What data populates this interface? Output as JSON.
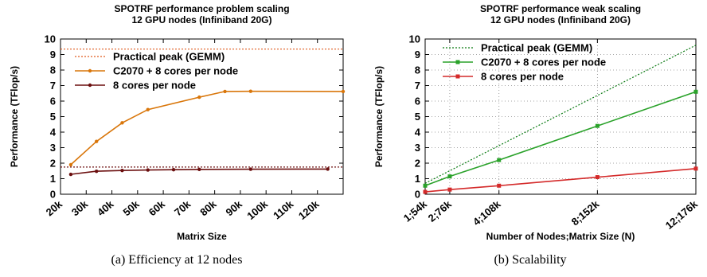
{
  "chart_data": [
    {
      "type": "line",
      "title": "SPOTRF performance problem scaling",
      "subtitle": "12 GPU nodes (Infiniband 20G)",
      "xlabel": "Matrix Size",
      "ylabel": "Performance (TFlop/s)",
      "xlim": [
        20000,
        130000
      ],
      "ylim": [
        0,
        10
      ],
      "x_tick_values": [
        20000,
        30000,
        40000,
        50000,
        60000,
        70000,
        80000,
        90000,
        100000,
        110000,
        120000
      ],
      "x_tick_labels": [
        "20k",
        "30k",
        "40k",
        "50k",
        "60k",
        "70k",
        "80k",
        "90k",
        "100k",
        "110k",
        "120k"
      ],
      "y_ticks": [
        0,
        1,
        2,
        3,
        4,
        5,
        6,
        7,
        8,
        9,
        10
      ],
      "grid": false,
      "legend_position": "top-left",
      "series": [
        {
          "name": "Practical peak (GEMM)",
          "style": "dotted",
          "color": "#e05a1e",
          "x": [
            20000,
            130000
          ],
          "values": [
            9.35,
            9.35
          ]
        },
        {
          "name": "C2070 + 8 cores per node",
          "style": "line-points",
          "color": "#d9760a",
          "x": [
            24000,
            34000,
            44000,
            54000,
            74000,
            84000,
            94000,
            130000
          ],
          "values": [
            1.9,
            3.4,
            4.6,
            5.45,
            6.25,
            6.62,
            6.63,
            6.62
          ]
        },
        {
          "name": "8 cores per node",
          "style": "line-points",
          "color": "#6b0f0f",
          "x": [
            24000,
            34000,
            44000,
            54000,
            64000,
            74000,
            94000,
            124000
          ],
          "values": [
            1.28,
            1.48,
            1.53,
            1.56,
            1.58,
            1.6,
            1.61,
            1.62
          ]
        },
        {
          "name": "",
          "style": "dotted",
          "color": "#6b0f0f",
          "x": [
            20000,
            130000
          ],
          "values": [
            1.75,
            1.75
          ]
        }
      ]
    },
    {
      "type": "line",
      "title": "SPOTRF performance weak scaling",
      "subtitle": "12 GPU nodes (Infiniband 20G)",
      "xlabel": "Number of Nodes;Matrix Size (N)",
      "ylabel": "Performance (TFlop/s)",
      "categories": [
        "1;54k",
        "2;76k",
        "4;108k",
        "8;152k",
        "12;176k"
      ],
      "x": [
        1,
        2,
        4,
        8,
        12
      ],
      "xlim": [
        1,
        12
      ],
      "ylim": [
        0,
        10
      ],
      "y_ticks": [
        0,
        1,
        2,
        3,
        4,
        5,
        6,
        7,
        8,
        9,
        10
      ],
      "grid": true,
      "legend_position": "top-left",
      "series": [
        {
          "name": "Practical peak (GEMM)",
          "style": "dotted",
          "color": "#0a7a12",
          "x": [
            1,
            12
          ],
          "values": [
            0.7,
            9.6
          ]
        },
        {
          "name": "C2070 + 8 cores per node",
          "style": "line-points",
          "color": "#2aa22a",
          "x": [
            1,
            2,
            4,
            8,
            12
          ],
          "values": [
            0.55,
            1.15,
            2.2,
            4.4,
            6.6
          ]
        },
        {
          "name": "8 cores per node",
          "style": "line-points",
          "color": "#d42a2a",
          "x": [
            1,
            2,
            4,
            8,
            12
          ],
          "values": [
            0.15,
            0.3,
            0.55,
            1.1,
            1.65
          ]
        }
      ]
    }
  ],
  "captions": {
    "left": "(a) Efficiency at 12 nodes",
    "right": "(b) Scalability"
  }
}
